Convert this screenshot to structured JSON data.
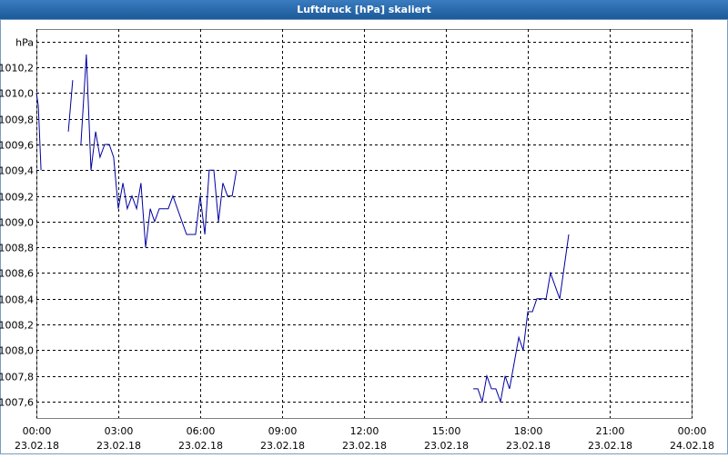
{
  "chart_data": {
    "type": "line",
    "title": "Luftdruck [hPa] skaliert",
    "x": [
      0,
      0.07,
      0.17,
      0.5,
      1.17,
      1.33,
      1.5,
      1.63,
      1.83,
      2,
      2.17,
      2.33,
      2.5,
      2.67,
      2.83,
      3,
      3.17,
      3.33,
      3.5,
      3.67,
      3.83,
      4,
      4.17,
      4.33,
      4.5,
      4.83,
      5,
      5.5,
      5.83,
      6,
      6.17,
      6.33,
      6.5,
      6.67,
      6.83,
      7,
      7.17,
      7.33,
      10,
      16,
      16.17,
      16.33,
      16.5,
      16.67,
      16.83,
      17,
      17.17,
      17.33,
      17.5,
      17.67,
      17.83,
      18,
      18.17,
      18.33,
      18.67,
      18.83,
      19.17,
      19.5
    ],
    "values": [
      1010.0,
      1009.9,
      1009.4,
      null,
      1009.7,
      1010.1,
      null,
      1009.6,
      1010.3,
      1009.4,
      1009.7,
      1009.5,
      1009.6,
      1009.6,
      1009.5,
      1009.1,
      1009.3,
      1009.1,
      1009.2,
      1009.1,
      1009.3,
      1008.8,
      1009.1,
      1009.0,
      1009.1,
      1009.1,
      1009.2,
      1008.9,
      1008.9,
      1009.2,
      1008.9,
      1009.4,
      1009.4,
      1009.0,
      1009.3,
      1009.2,
      1009.2,
      1009.4,
      null,
      1007.7,
      1007.7,
      1007.6,
      1007.8,
      1007.7,
      1007.7,
      1007.6,
      1007.8,
      1007.7,
      1007.9,
      1008.1,
      1008.0,
      1008.3,
      1008.3,
      1008.4,
      1008.4,
      1008.6,
      1008.4,
      1008.9
    ],
    "color": "#0000a0",
    "xlim": [
      0,
      24
    ],
    "xticks": [
      {
        "value": 0,
        "label": "00:00",
        "date": "23.02.18"
      },
      {
        "value": 3,
        "label": "03:00",
        "date": "23.02.18"
      },
      {
        "value": 6,
        "label": "06:00",
        "date": "23.02.18"
      },
      {
        "value": 9,
        "label": "09:00",
        "date": "23.02.18"
      },
      {
        "value": 12,
        "label": "12:00",
        "date": "23.02.18"
      },
      {
        "value": 15,
        "label": "15:00",
        "date": "23.02.18"
      },
      {
        "value": 18,
        "label": "18:00",
        "date": "23.02.18"
      },
      {
        "value": 21,
        "label": "21:00",
        "date": "23.02.18"
      },
      {
        "value": 24,
        "label": "00:00",
        "date": "24.02.18"
      }
    ],
    "ylim": [
      1007.473,
      1010.497
    ],
    "yticks": [
      {
        "value": 1007.6,
        "label": "1007,6"
      },
      {
        "value": 1007.8,
        "label": "1007,8"
      },
      {
        "value": 1008.0,
        "label": "1008,0"
      },
      {
        "value": 1008.2,
        "label": "1008,2"
      },
      {
        "value": 1008.4,
        "label": "1008,4"
      },
      {
        "value": 1008.6,
        "label": "1008,6"
      },
      {
        "value": 1008.8,
        "label": "1008,8"
      },
      {
        "value": 1009.0,
        "label": "1009,0"
      },
      {
        "value": 1009.2,
        "label": "1009,2"
      },
      {
        "value": 1009.4,
        "label": "1009,4"
      },
      {
        "value": 1009.6,
        "label": "1009,6"
      },
      {
        "value": 1009.8,
        "label": "1009,8"
      },
      {
        "value": 1010.0,
        "label": "1010,0"
      },
      {
        "value": 1010.2,
        "label": "1010,2"
      },
      {
        "value": 1010.4,
        "label": "hPa"
      }
    ],
    "grid": true
  }
}
